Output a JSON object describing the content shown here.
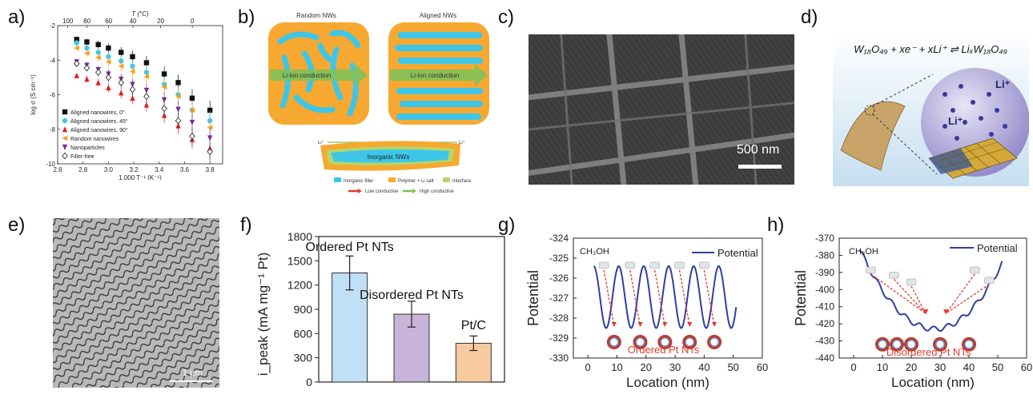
{
  "panel_labels": {
    "a": "a)",
    "b": "b)",
    "c": "c)",
    "d": "d)",
    "e": "e)",
    "f": "f)",
    "g": "g)",
    "h": "h)"
  },
  "panel_b": {
    "random_title": "Random NWs",
    "aligned_title": "Aligned NWs",
    "arrow_random": "Li-ion conduction",
    "arrow_aligned": "Li-ion conduction",
    "bottom_label": "Inorganic NWs",
    "li_left": "Li⁺",
    "li_right": "Li⁺",
    "legend": [
      "Inorganic filler",
      "Polymer + Li salt",
      "Interface",
      "Low conductive",
      "High conductive"
    ],
    "colors": {
      "filler": "#3ec6e8",
      "polymer": "#f7a830",
      "interface": "#b5d66a",
      "low": "#e23b2e",
      "high": "#7fc15a"
    }
  },
  "panel_c": {
    "scale_label": "500 nm"
  },
  "panel_d": {
    "equation": "W₁₈O₄₉ + xe⁻ + xLi⁺ ⇌ LiₓW₁₈O₄₉",
    "li_a": "Li⁺",
    "li_b": "Li⁺"
  },
  "panel_e": {
    "scale_label": "1 μm"
  },
  "chart_data": [
    {
      "id": "a",
      "type": "scatter",
      "xlabel": "1,000 T⁻¹ (K⁻¹)",
      "ylabel": "log σ (S cm⁻¹)",
      "top_xlabel": "T (°C)",
      "xlim": [
        2.6,
        3.9
      ],
      "ylim": [
        -10,
        -2
      ],
      "x_ticks": [
        "2.6",
        "2.8",
        "3.0",
        "3.2",
        "3.4",
        "3.6",
        "3.8"
      ],
      "y_ticks": [
        "-10",
        "-8",
        "-6",
        "-4",
        "-2"
      ],
      "top_ticks": [
        "100",
        "80",
        "60",
        "40",
        "20",
        "0"
      ],
      "top_tick_temps": [
        100,
        80,
        60,
        40,
        20,
        0
      ],
      "x": [
        2.75,
        2.83,
        2.92,
        3.0,
        3.1,
        3.19,
        3.3,
        3.44,
        3.55,
        3.66,
        3.8
      ],
      "series": [
        {
          "name": "Aligned nanowires, 0°",
          "marker": "square",
          "color": "#111111",
          "values": [
            -2.8,
            -2.95,
            -3.1,
            -3.3,
            -3.55,
            -3.8,
            -4.15,
            -4.8,
            -5.3,
            -6.2,
            -6.9
          ]
        },
        {
          "name": "Aligned nanowires, 45°",
          "marker": "circle",
          "color": "#3ec6e8",
          "values": [
            -3.0,
            -3.3,
            -3.55,
            -3.8,
            -4.05,
            -4.35,
            -4.7,
            -5.4,
            -6.0,
            -6.9,
            -7.5
          ]
        },
        {
          "name": "Aligned nanowires, 90°",
          "marker": "triangle",
          "color": "#e02020",
          "values": [
            -4.9,
            -5.1,
            -5.3,
            -5.6,
            -5.9,
            -6.2,
            -6.6,
            -7.2,
            -7.8,
            -8.6,
            -9.1
          ]
        },
        {
          "name": "Random nanowires",
          "marker": "triangle-left",
          "color": "#f7a020",
          "values": [
            -3.3,
            -3.6,
            -3.85,
            -4.1,
            -4.35,
            -4.65,
            -4.95,
            -5.55,
            -6.1,
            -6.9,
            -7.9
          ]
        },
        {
          "name": "Nanoparticles",
          "marker": "triangle-down",
          "color": "#7a2a9a",
          "values": [
            -4.1,
            -4.3,
            -4.55,
            -4.8,
            -5.1,
            -5.4,
            -5.75,
            -6.3,
            -6.85,
            -7.6,
            -8.5
          ]
        },
        {
          "name": "Filler-free",
          "marker": "diamond",
          "color": "#333333",
          "values": [
            -4.2,
            -4.45,
            -4.7,
            -5.0,
            -5.3,
            -5.7,
            -6.1,
            -6.8,
            -7.5,
            -8.4,
            -9.3
          ]
        }
      ],
      "legend": "center-left"
    },
    {
      "id": "f",
      "type": "bar",
      "categories": [
        "Ordered Pt NTs",
        "Disordered Pt NTs",
        "Pt/C"
      ],
      "values": [
        1350,
        840,
        480
      ],
      "errors": [
        210,
        160,
        90
      ],
      "colors": [
        "#bfe0f5",
        "#c7b4d8",
        "#f8caa0"
      ],
      "ylabel": "i_peak (mA mg⁻¹ Pt)",
      "ylim": [
        0,
        1800
      ],
      "y_ticks": [
        "0",
        "300",
        "600",
        "900",
        "1200",
        "1500",
        "1800"
      ]
    },
    {
      "id": "g",
      "type": "line",
      "xlabel": "Location (nm)",
      "ylabel": "Potential",
      "xlim": [
        -5,
        60
      ],
      "ylim": [
        -330,
        -324
      ],
      "x_ticks": [
        "0",
        "10",
        "20",
        "30",
        "40",
        "50",
        "60"
      ],
      "y_ticks": [
        "-324",
        "-325",
        "-326",
        "-327",
        "-328",
        "-329",
        "-330"
      ],
      "series": [
        {
          "name": "Potential",
          "color": "#2f3fa0"
        }
      ],
      "well_centers": [
        9,
        18,
        26.5,
        35,
        43.5
      ],
      "baseline": -325.4,
      "depth": -328.5,
      "annotation_molecule": "CH₃OH",
      "annotation_label": "Ordered Pt NTs"
    },
    {
      "id": "h",
      "type": "line",
      "xlabel": "Location (nm)",
      "ylabel": "Potential",
      "xlim": [
        -5,
        60
      ],
      "ylim": [
        -440,
        -370
      ],
      "x_ticks": [
        "0",
        "10",
        "20",
        "30",
        "40",
        "50",
        "60"
      ],
      "y_ticks": [
        "-370",
        "-380",
        "-390",
        "-400",
        "-410",
        "-420",
        "-430",
        "-440"
      ],
      "series": [
        {
          "name": "Potential",
          "color": "#2f3fa0"
        }
      ],
      "tube_centers": [
        10,
        15,
        20,
        30,
        40
      ],
      "annotation_molecule": "CH₃OH",
      "annotation_label": "Disordered Pt NTs"
    }
  ]
}
